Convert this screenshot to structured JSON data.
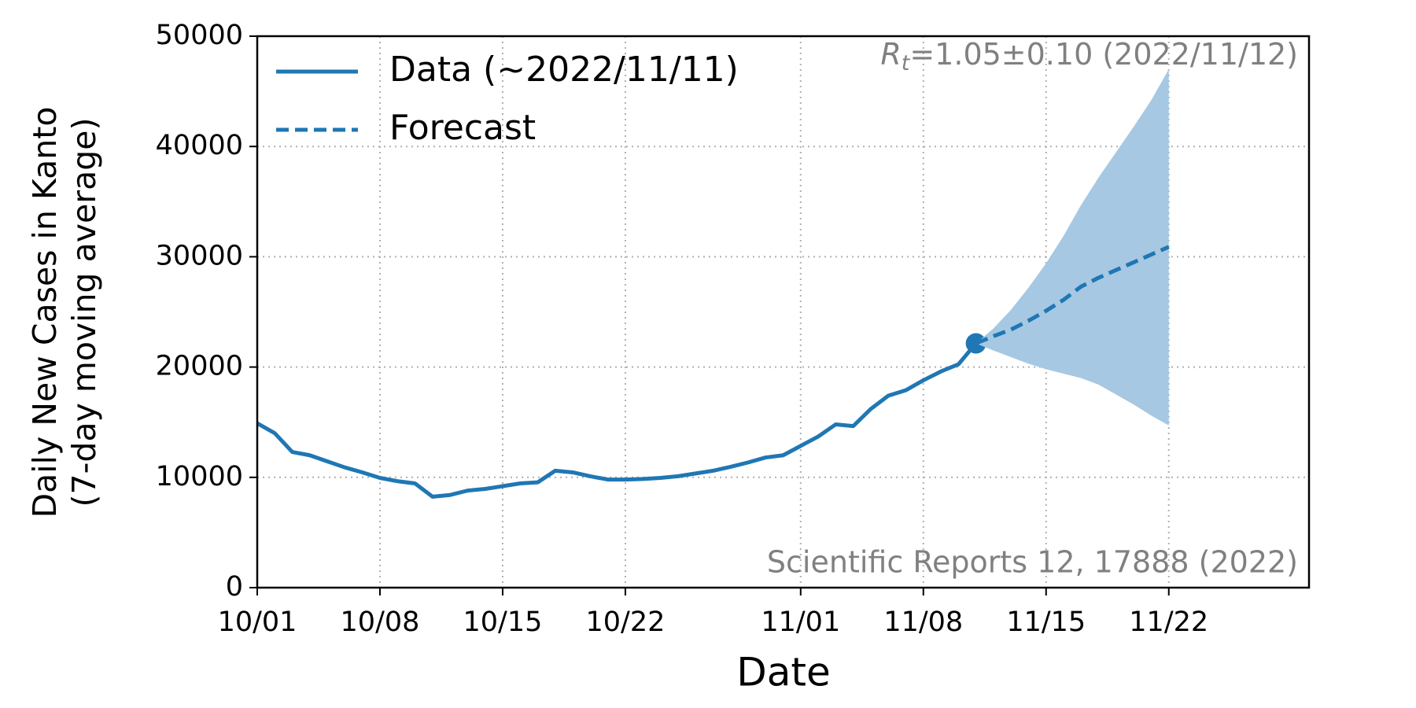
{
  "chart_data": {
    "type": "line",
    "xlabel": "Date",
    "ylabel": [
      "Daily New Cases in Kanto",
      "(7-day moving average)"
    ],
    "xlim": [
      "10/01",
      "11/30"
    ],
    "xticks": [
      "10/01",
      "10/08",
      "10/15",
      "10/22",
      "11/01",
      "11/08",
      "11/15",
      "11/22"
    ],
    "ylim": [
      0,
      50000
    ],
    "yticks": [
      0,
      10000,
      20000,
      30000,
      40000,
      50000
    ],
    "grid": true,
    "legend": "upper left",
    "series": [
      {
        "name": "Data (~2022/11/11)",
        "color": "#1f77b4",
        "style": "solid",
        "marker_last": true,
        "x": [
          "10/01",
          "10/02",
          "10/03",
          "10/04",
          "10/05",
          "10/06",
          "10/07",
          "10/08",
          "10/09",
          "10/10",
          "10/11",
          "10/12",
          "10/13",
          "10/14",
          "10/15",
          "10/16",
          "10/17",
          "10/18",
          "10/19",
          "10/20",
          "10/21",
          "10/22",
          "10/23",
          "10/24",
          "10/25",
          "10/26",
          "10/27",
          "10/28",
          "10/29",
          "10/30",
          "10/31",
          "11/01",
          "11/02",
          "11/03",
          "11/04",
          "11/05",
          "11/06",
          "11/07",
          "11/08",
          "11/09",
          "11/10",
          "11/11"
        ],
        "values": [
          14900,
          14000,
          12300,
          12000,
          11450,
          10900,
          10450,
          9950,
          9650,
          9450,
          8250,
          8400,
          8800,
          8950,
          9200,
          9450,
          9550,
          10600,
          10450,
          10100,
          9800,
          9800,
          9850,
          9950,
          10100,
          10350,
          10600,
          10950,
          11350,
          11800,
          12000,
          12850,
          13700,
          14800,
          14650,
          16200,
          17400,
          17900,
          18800,
          19600,
          20250,
          22150
        ]
      },
      {
        "name": "Forecast",
        "color": "#1f77b4",
        "style": "dashed",
        "band_color": "#a6c8e2",
        "x": [
          "11/11",
          "11/12",
          "11/13",
          "11/14",
          "11/15",
          "11/16",
          "11/17",
          "11/18",
          "11/19",
          "11/20",
          "11/21",
          "11/22"
        ],
        "values": [
          22150,
          22800,
          23400,
          24200,
          25100,
          26100,
          27300,
          28100,
          28800,
          29500,
          30200,
          30900
        ],
        "lower": [
          22150,
          21500,
          20900,
          20300,
          19800,
          19400,
          19000,
          18400,
          17500,
          16600,
          15600,
          14700
        ],
        "upper": [
          22150,
          23500,
          25200,
          27200,
          29400,
          31900,
          34700,
          37200,
          39500,
          41800,
          44200,
          47000
        ]
      }
    ],
    "annotations": [
      {
        "symbol": "R",
        "subscript": "t",
        "text": "=1.05±0.10 (2022/11/12)",
        "color": "#808080",
        "position": "upper right"
      },
      {
        "text": "Scientific Reports 12, 17888 (2022)",
        "color": "#808080",
        "position": "lower right"
      }
    ]
  }
}
